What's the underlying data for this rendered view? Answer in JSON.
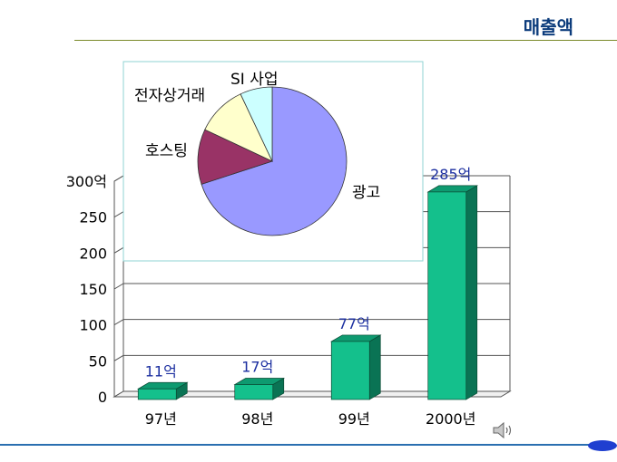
{
  "slide": {
    "title": "매출액",
    "colors": {
      "title": "#0c3c7c",
      "title_rule": "#7a8a2a",
      "bottom_rule": "#2a6fb0",
      "nav_oval": "#1f3fd0"
    }
  },
  "chart_data": [
    {
      "type": "bar",
      "categories": [
        "97년",
        "98년",
        "99년",
        "2000년"
      ],
      "values": [
        11,
        17,
        77,
        285
      ],
      "data_labels": [
        "11억",
        "17억",
        "77억",
        "285억"
      ],
      "ylim": [
        0,
        300
      ],
      "y_ticks": [
        0,
        50,
        100,
        150,
        200,
        250,
        300
      ],
      "y_tick_labels": [
        "0",
        "50",
        "100",
        "150",
        "200",
        "250",
        "300억"
      ],
      "grid": true,
      "style": "3d",
      "colors": {
        "bar_front": "#14c08c",
        "bar_top": "#0e9a70",
        "bar_side": "#0a7354",
        "label": "#1c2fa0"
      }
    },
    {
      "type": "pie",
      "labels": [
        "광고",
        "호스팅",
        "전자상거래",
        "SI 사업"
      ],
      "values": [
        70,
        12,
        11,
        7
      ],
      "colors": [
        "#9999ff",
        "#993366",
        "#ffffcc",
        "#ccffff"
      ]
    }
  ],
  "icons": {
    "speaker": "speaker-icon",
    "nav": "nav-oval"
  }
}
